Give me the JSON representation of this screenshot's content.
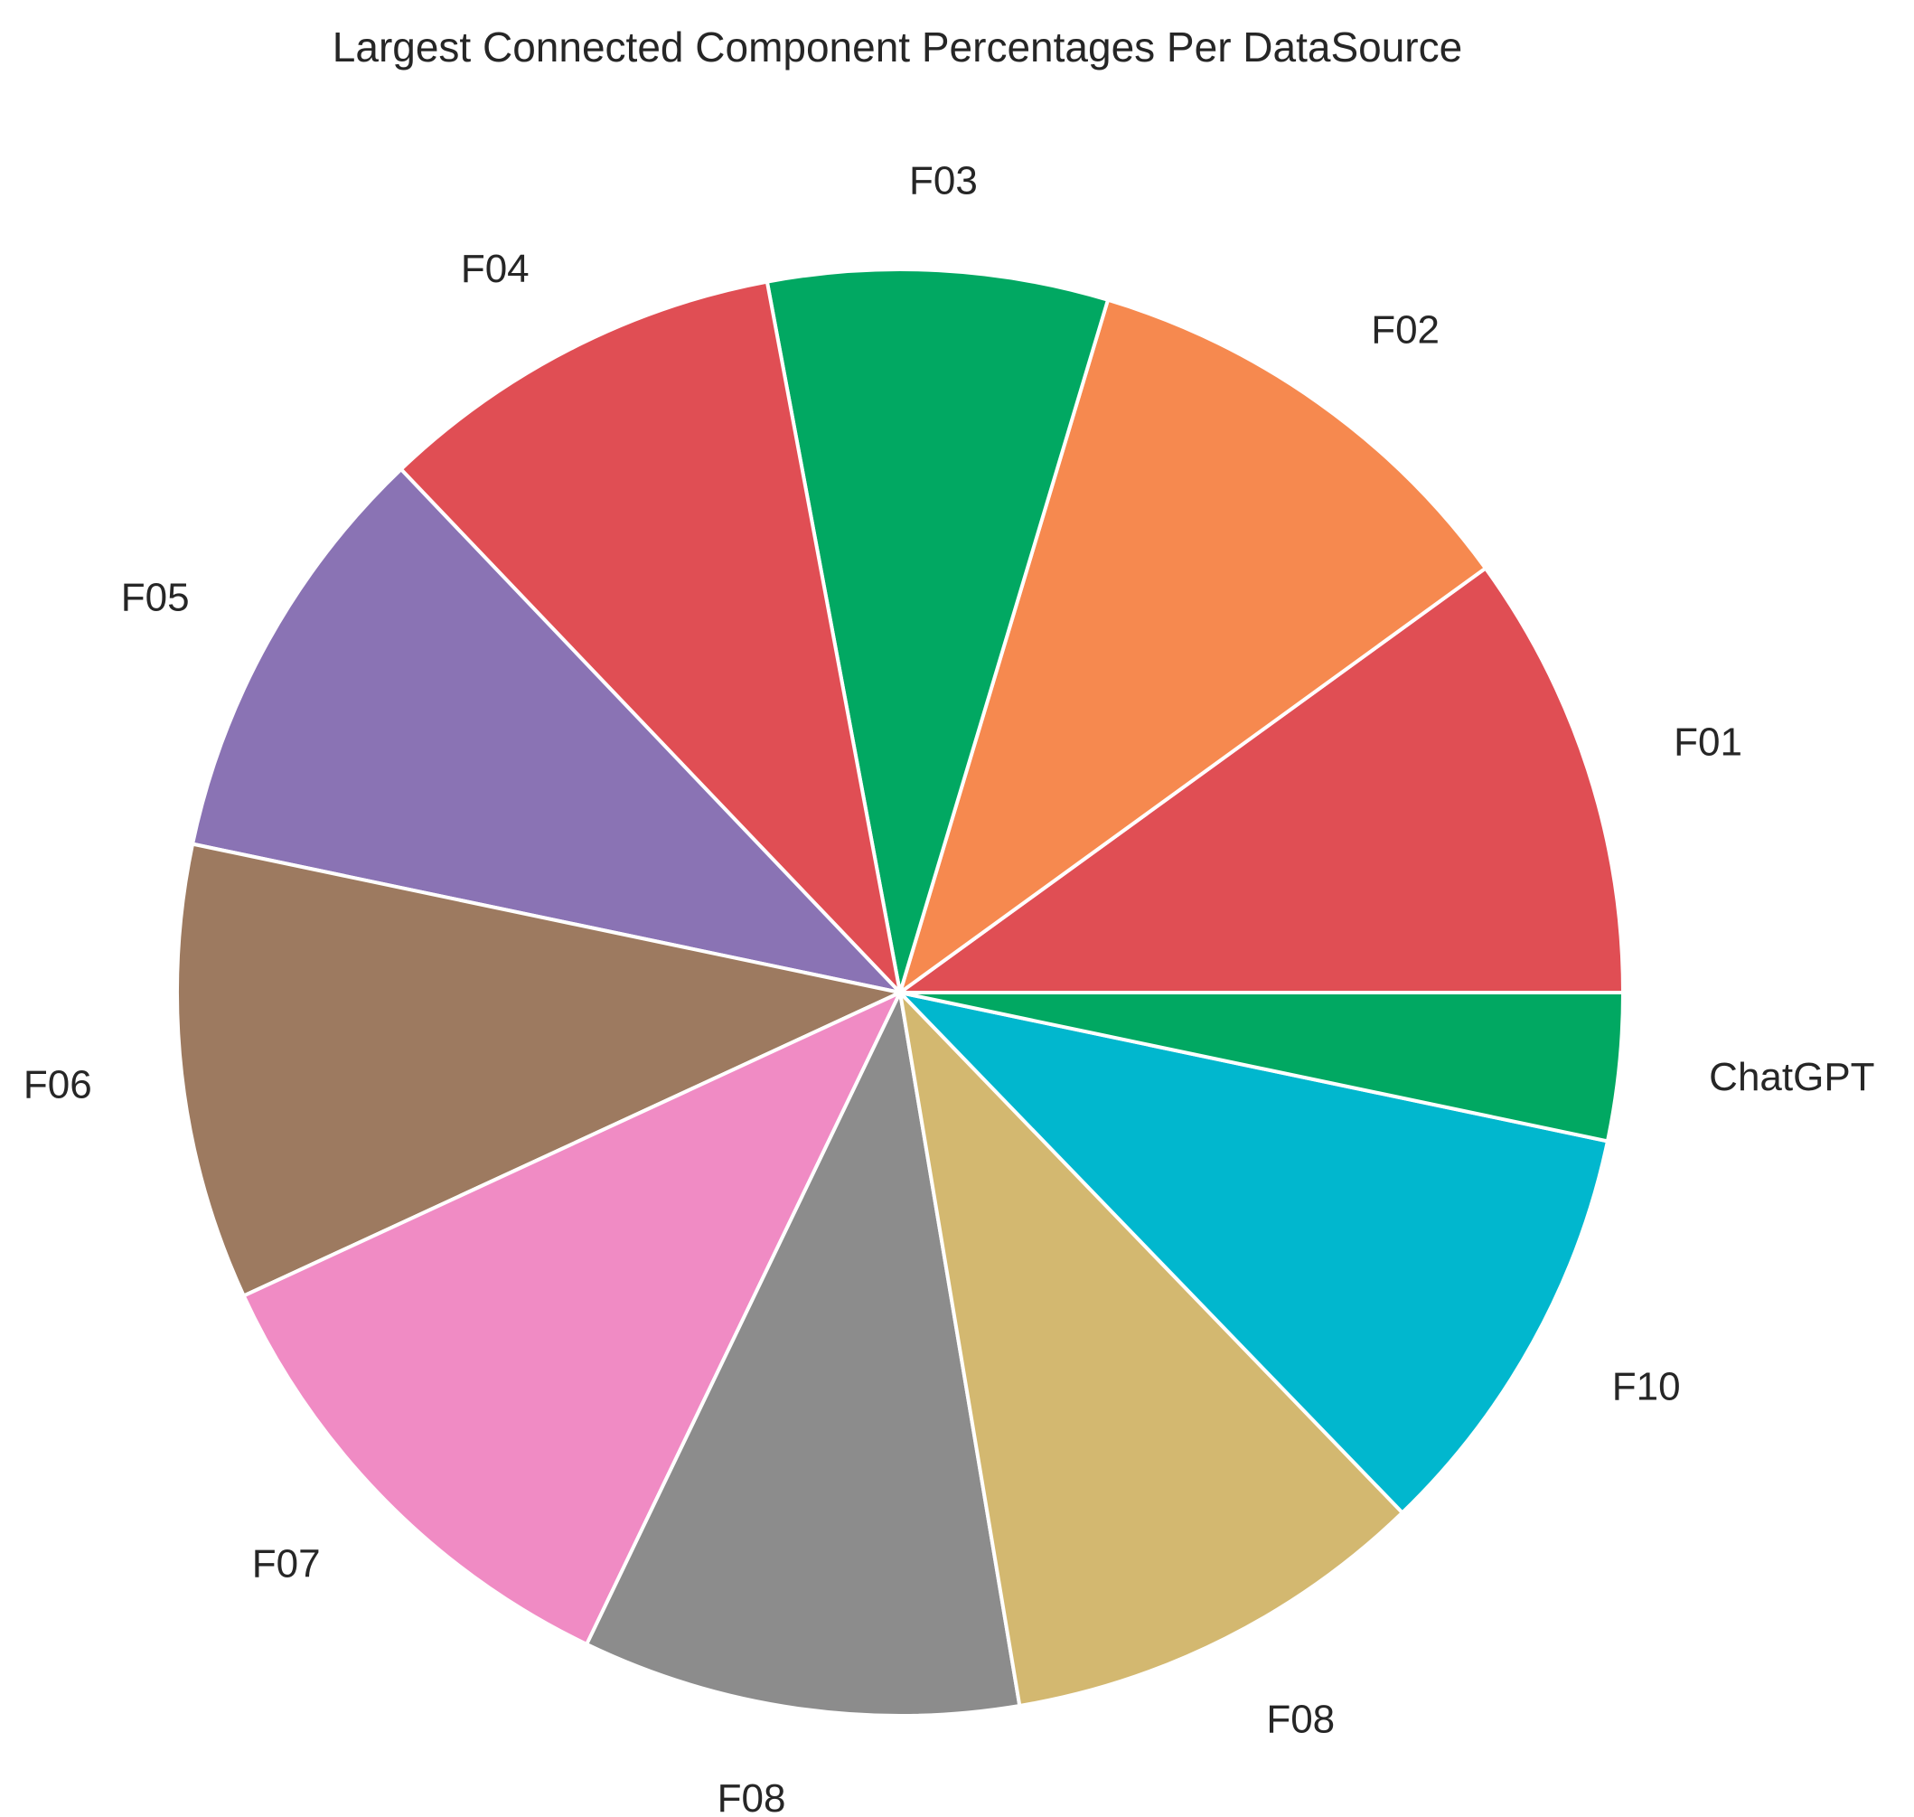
{
  "chart_data": {
    "type": "pie",
    "title": "Largest Connected Component Percentages Per DataSource",
    "categories": [
      "F01",
      "F02",
      "F03",
      "F04",
      "F05",
      "F06",
      "F07",
      "F08",
      "F08",
      "F10",
      "ChatGPT"
    ],
    "values": [
      10.0,
      10.4,
      7.6,
      9.2,
      9.6,
      10.2,
      11.0,
      9.8,
      9.6,
      9.5,
      3.3
    ],
    "colors": [
      "#e04e54",
      "#f6894f",
      "#01a862",
      "#e04e54",
      "#8a73b4",
      "#9d7a60",
      "#f08bc4",
      "#8c8c8c",
      "#d3b870",
      "#01b7ce",
      "#01a862"
    ],
    "start_angle_deg": 0,
    "direction": "counterclockwise",
    "legend": "none"
  }
}
